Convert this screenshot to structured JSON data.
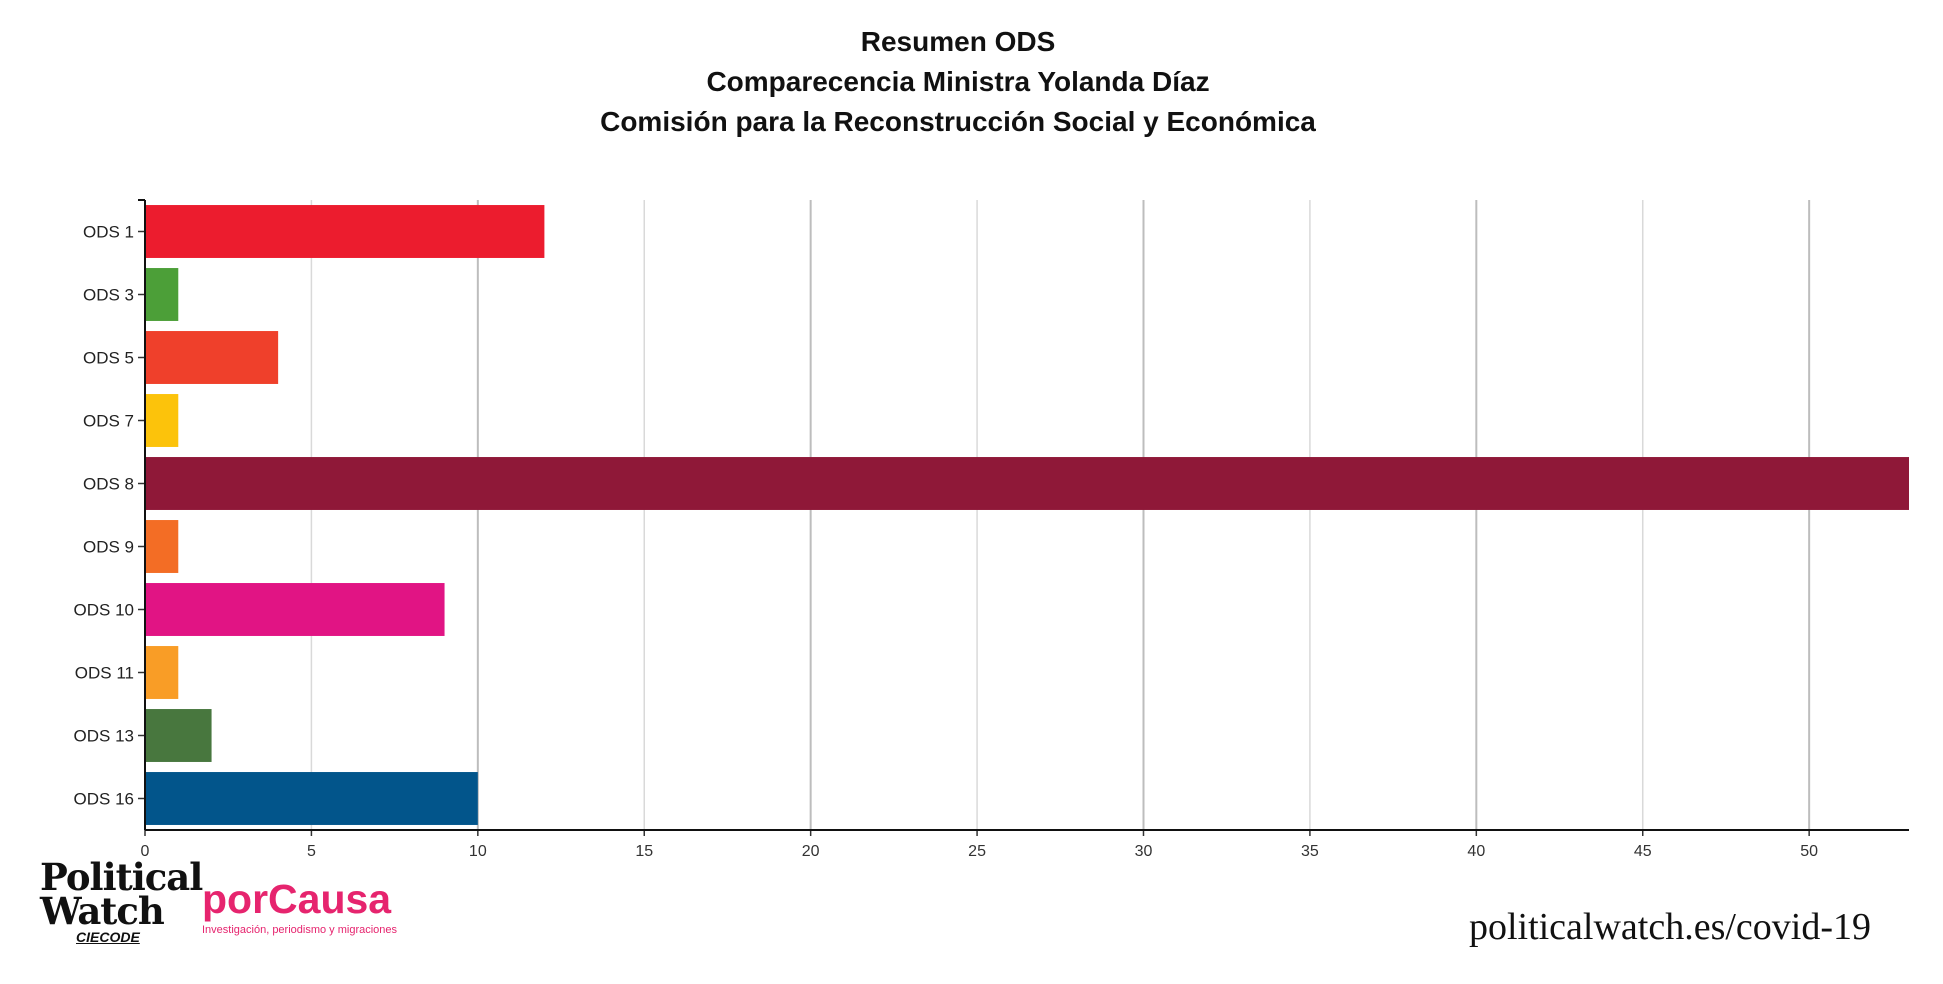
{
  "header": {
    "title_line1": "Resumen ODS",
    "title_line2": "Comparecencia Ministra Yolanda Díaz",
    "title_line3": "Comisión para la Reconstrucción Social y Económica"
  },
  "chart_data": {
    "type": "bar",
    "orientation": "horizontal",
    "categories": [
      "ODS 1",
      "ODS 3",
      "ODS 5",
      "ODS 7",
      "ODS 8",
      "ODS 9",
      "ODS 10",
      "ODS 11",
      "ODS 13",
      "ODS 16"
    ],
    "values": [
      12,
      1,
      4,
      1,
      53,
      1,
      9,
      1,
      2,
      10
    ],
    "colors": [
      "#ec1c2e",
      "#4c9f38",
      "#ef402b",
      "#fcc30b",
      "#8f1838",
      "#f36d25",
      "#e11484",
      "#f99d26",
      "#48773e",
      "#02558b"
    ],
    "xlim": [
      0,
      53
    ],
    "xticks": [
      0,
      5,
      10,
      15,
      20,
      25,
      30,
      35,
      40,
      45,
      50
    ],
    "grid": "vertical",
    "title": "Resumen ODS",
    "xlabel": "",
    "ylabel": ""
  },
  "footer": {
    "logo_political_line1": "Political",
    "logo_political_line2": "Watch",
    "logo_political_sub": "CIECODE",
    "logo_porcausa_name": "porCausa",
    "logo_porcausa_tagline": "Investigación, periodismo y migraciones",
    "site_url": "politicalwatch.es/covid-19"
  }
}
